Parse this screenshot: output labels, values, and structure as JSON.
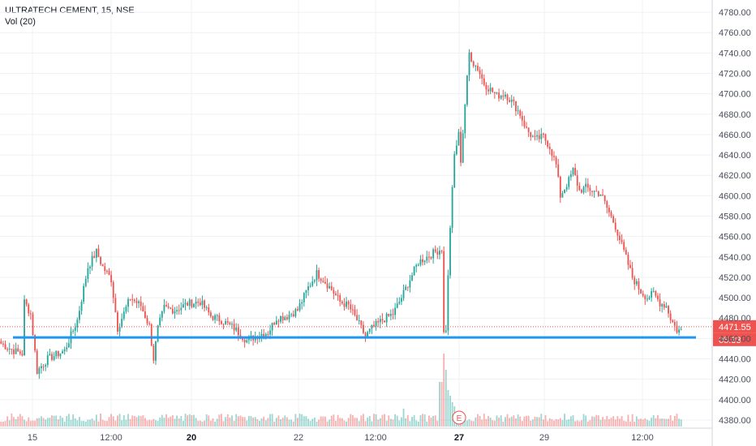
{
  "header": {
    "symbol_line": "ULTRATECH CEMENT, 15, NSE",
    "volume_line": "Vol (20)"
  },
  "colors": {
    "up": "#26a69a",
    "down": "#ef5350",
    "support_line": "#2196f3",
    "price_tag": "#ef5350",
    "grid": "#eef1f5"
  },
  "chart_data": {
    "type": "candlestick",
    "symbol": "ULTRATECH CEMENT",
    "interval": "15",
    "exchange": "NSE",
    "y_axis": {
      "ylim": [
        4372,
        4792
      ],
      "ticks": [
        4380,
        4400,
        4420,
        4440,
        4460,
        4480,
        4500,
        4520,
        4540,
        4560,
        4580,
        4600,
        4620,
        4640,
        4660,
        4680,
        4700,
        4720,
        4740,
        4760,
        4780
      ]
    },
    "x_axis": {
      "labels": [
        {
          "text": "15",
          "bold": false
        },
        {
          "text": "12:00",
          "bold": false
        },
        {
          "text": "20",
          "bold": true
        },
        {
          "text": "22",
          "bold": false
        },
        {
          "text": "12:00",
          "bold": false
        },
        {
          "text": "27",
          "bold": true
        },
        {
          "text": "29",
          "bold": false
        },
        {
          "text": "12:00",
          "bold": false
        }
      ]
    },
    "last_price": "4471.55",
    "countdown": "05:33",
    "support_level": 4461,
    "earnings_marker": "E",
    "grid": true,
    "path_anchors": [
      [
        0,
        4455
      ],
      [
        6,
        4448
      ],
      [
        10,
        4445
      ],
      [
        11,
        4496
      ],
      [
        14,
        4484
      ],
      [
        17,
        4428
      ],
      [
        22,
        4440
      ],
      [
        26,
        4444
      ],
      [
        30,
        4448
      ],
      [
        36,
        4478
      ],
      [
        41,
        4530
      ],
      [
        45,
        4545
      ],
      [
        48,
        4530
      ],
      [
        52,
        4518
      ],
      [
        55,
        4470
      ],
      [
        57,
        4480
      ],
      [
        61,
        4500
      ],
      [
        66,
        4492
      ],
      [
        70,
        4472
      ],
      [
        72,
        4440
      ],
      [
        74,
        4470
      ],
      [
        77,
        4490
      ],
      [
        82,
        4488
      ],
      [
        88,
        4494
      ],
      [
        94,
        4496
      ],
      [
        99,
        4482
      ],
      [
        104,
        4478
      ],
      [
        110,
        4470
      ],
      [
        116,
        4458
      ],
      [
        122,
        4464
      ],
      [
        126,
        4466
      ],
      [
        130,
        4480
      ],
      [
        135,
        4482
      ],
      [
        140,
        4488
      ],
      [
        145,
        4510
      ],
      [
        149,
        4524
      ],
      [
        152,
        4518
      ],
      [
        156,
        4508
      ],
      [
        160,
        4496
      ],
      [
        164,
        4492
      ],
      [
        168,
        4478
      ],
      [
        172,
        4462
      ],
      [
        175,
        4470
      ],
      [
        180,
        4478
      ],
      [
        185,
        4484
      ],
      [
        189,
        4500
      ],
      [
        193,
        4518
      ],
      [
        197,
        4535
      ],
      [
        201,
        4540
      ],
      [
        205,
        4545
      ],
      [
        208,
        4548
      ],
      [
        209,
        4465
      ],
      [
        210,
        4470
      ],
      [
        212,
        4570
      ],
      [
        214,
        4640
      ],
      [
        216,
        4660
      ],
      [
        217,
        4635
      ],
      [
        219,
        4690
      ],
      [
        221,
        4740
      ],
      [
        223,
        4730
      ],
      [
        225,
        4725
      ],
      [
        228,
        4710
      ],
      [
        231,
        4704
      ],
      [
        234,
        4698
      ],
      [
        238,
        4700
      ],
      [
        242,
        4690
      ],
      [
        245,
        4680
      ],
      [
        248,
        4665
      ],
      [
        252,
        4655
      ],
      [
        256,
        4658
      ],
      [
        259,
        4648
      ],
      [
        262,
        4630
      ],
      [
        264,
        4600
      ],
      [
        268,
        4615
      ],
      [
        270,
        4625
      ],
      [
        273,
        4605
      ],
      [
        276,
        4608
      ],
      [
        279,
        4605
      ],
      [
        283,
        4602
      ],
      [
        286,
        4588
      ],
      [
        290,
        4570
      ],
      [
        294,
        4545
      ],
      [
        298,
        4520
      ],
      [
        302,
        4506
      ],
      [
        305,
        4500
      ],
      [
        308,
        4504
      ],
      [
        311,
        4495
      ],
      [
        314,
        4492
      ],
      [
        316,
        4480
      ],
      [
        319,
        4468
      ]
    ],
    "volume": {
      "base": 6,
      "spikes": [
        [
          207,
          55
        ],
        [
          208,
          55
        ],
        [
          209,
          90
        ],
        [
          210,
          70
        ],
        [
          211,
          45
        ],
        [
          212,
          38
        ],
        [
          213,
          30
        ],
        [
          214,
          25
        ],
        [
          215,
          18
        ],
        [
          190,
          22
        ],
        [
          270,
          14
        ],
        [
          280,
          12
        ],
        [
          312,
          10
        ]
      ]
    }
  }
}
